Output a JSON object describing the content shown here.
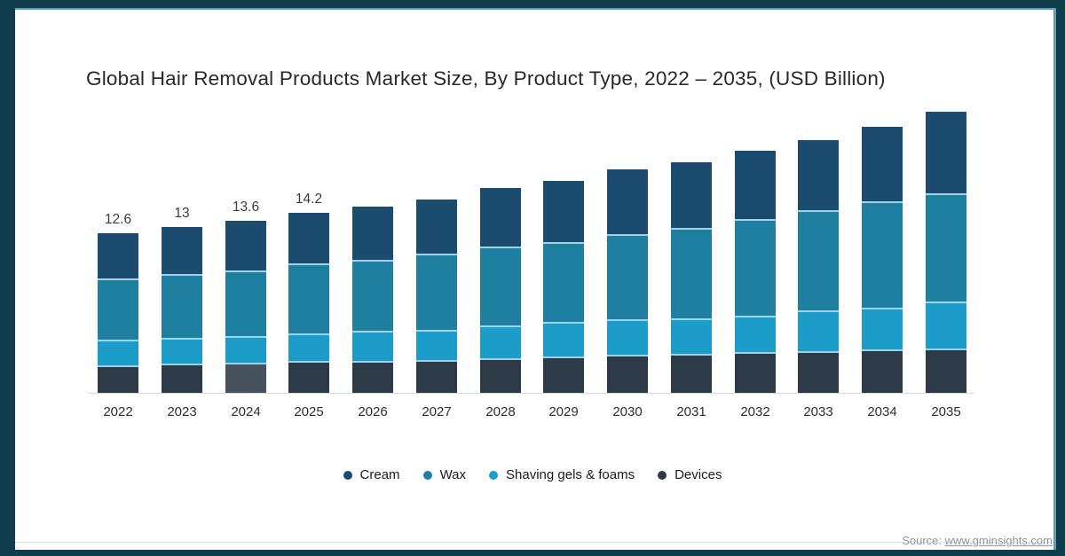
{
  "frame": {
    "border_color": "#0F3D4C",
    "accent_color": "#5C9FB6"
  },
  "chart_data": {
    "type": "bar",
    "stacked": true,
    "title": "Global Hair Removal Products Market Size, By Product Type, 2022 – 2035, (USD Billion)",
    "unit": "USD Billion",
    "categories": [
      "2022",
      "2023",
      "2024",
      "2025",
      "2026",
      "2027",
      "2028",
      "2029",
      "2030",
      "2031",
      "2032",
      "2033",
      "2034",
      "2035"
    ],
    "series": [
      {
        "name": "Cream",
        "color": "#1B4C70",
        "values": [
          3.6,
          3.7,
          3.9,
          4.0,
          4.2,
          4.3,
          4.6,
          4.8,
          5.1,
          5.2,
          5.4,
          5.5,
          5.9,
          6.4
        ]
      },
      {
        "name": "Wax",
        "color": "#1E7FA1",
        "values": [
          4.8,
          5.0,
          5.2,
          5.5,
          5.6,
          6.0,
          6.2,
          6.3,
          6.7,
          7.1,
          7.6,
          7.9,
          8.4,
          8.5
        ]
      },
      {
        "name": "Shaving gels & foams",
        "color": "#1B9CC9",
        "values": [
          2.0,
          2.0,
          2.1,
          2.2,
          2.4,
          2.4,
          2.6,
          2.7,
          2.8,
          2.8,
          2.9,
          3.2,
          3.3,
          3.7
        ]
      },
      {
        "name": "Devices",
        "color": "#2D3A47",
        "values": [
          2.2,
          2.3,
          2.4,
          2.5,
          2.5,
          2.6,
          2.7,
          2.9,
          3.0,
          3.1,
          3.2,
          3.3,
          3.4,
          3.5
        ]
      }
    ],
    "stack_order_bottom_to_top": [
      "Devices",
      "Shaving gels & foams",
      "Wax",
      "Cream"
    ],
    "bar_total_labels": [
      "12.6",
      "13",
      "13.6",
      "14.2",
      "",
      "",
      "",
      "",
      "",
      "",
      "",
      "",
      "",
      ""
    ],
    "highlighted_segment": {
      "category": "2024",
      "series": "Devices",
      "color": "#46525E"
    },
    "legend_position": "bottom-center",
    "grid": false,
    "ylim": [
      0,
      22.5
    ],
    "totals": [
      12.6,
      13.0,
      13.6,
      14.2,
      14.7,
      15.3,
      16.1,
      16.7,
      17.6,
      18.2,
      19.1,
      19.9,
      21.0,
      22.1
    ]
  },
  "footer": {
    "source_prefix": "Source: ",
    "source_link": "www.gminsights.com"
  }
}
